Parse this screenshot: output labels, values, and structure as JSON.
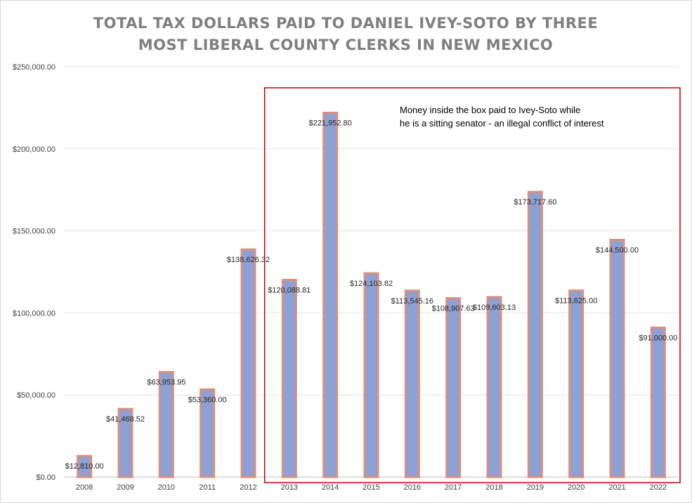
{
  "chart_data": {
    "type": "bar",
    "title_lines": [
      "TOTAL TAX DOLLARS PAID TO DANIEL IVEY-SOTO BY THREE",
      "MOST LIBERAL COUNTY CLERKS IN NEW MEXICO"
    ],
    "categories": [
      "2008",
      "2009",
      "2010",
      "2011",
      "2012",
      "2013",
      "2014",
      "2015",
      "2016",
      "2017",
      "2018",
      "2019",
      "2020",
      "2021",
      "2022"
    ],
    "values": [
      12810.0,
      41468.52,
      63953.95,
      53360.0,
      138626.32,
      120088.81,
      221952.8,
      124103.82,
      113545.16,
      108907.63,
      109603.13,
      173717.6,
      113625.0,
      144500.0,
      91000.0
    ],
    "data_labels": [
      "$12,810.00",
      "$41,468.52",
      "$63,953.95",
      "$53,360.00",
      "$138,626.32",
      "$120,088.81",
      "$221,952.80",
      "$124,103.82",
      "$113,545.16",
      "$108,907.63",
      "$109,603.13",
      "$173,717.60",
      "$113,625.00",
      "$144,500.00",
      "$91,000.00"
    ],
    "y_ticks": [
      0,
      50000,
      100000,
      150000,
      200000,
      250000
    ],
    "y_tick_labels": [
      "$0.00",
      "$50,000.00",
      "$100,000.00",
      "$150,000.00",
      "$200,000.00",
      "$250,000.00"
    ],
    "ylim": [
      0,
      250000
    ],
    "grid": true,
    "colors": {
      "bar_fill": "#8ea1d4",
      "bar_border": "#d9907e",
      "highlight_box": "#c00000",
      "title": "#7f7f7f"
    },
    "highlight": {
      "from_category": "2013",
      "to_category": "2022",
      "note_lines": [
        "Money inside the box paid to Ivey-Soto while",
        "he is a sitting senator - an illegal conflict of interest"
      ]
    }
  }
}
